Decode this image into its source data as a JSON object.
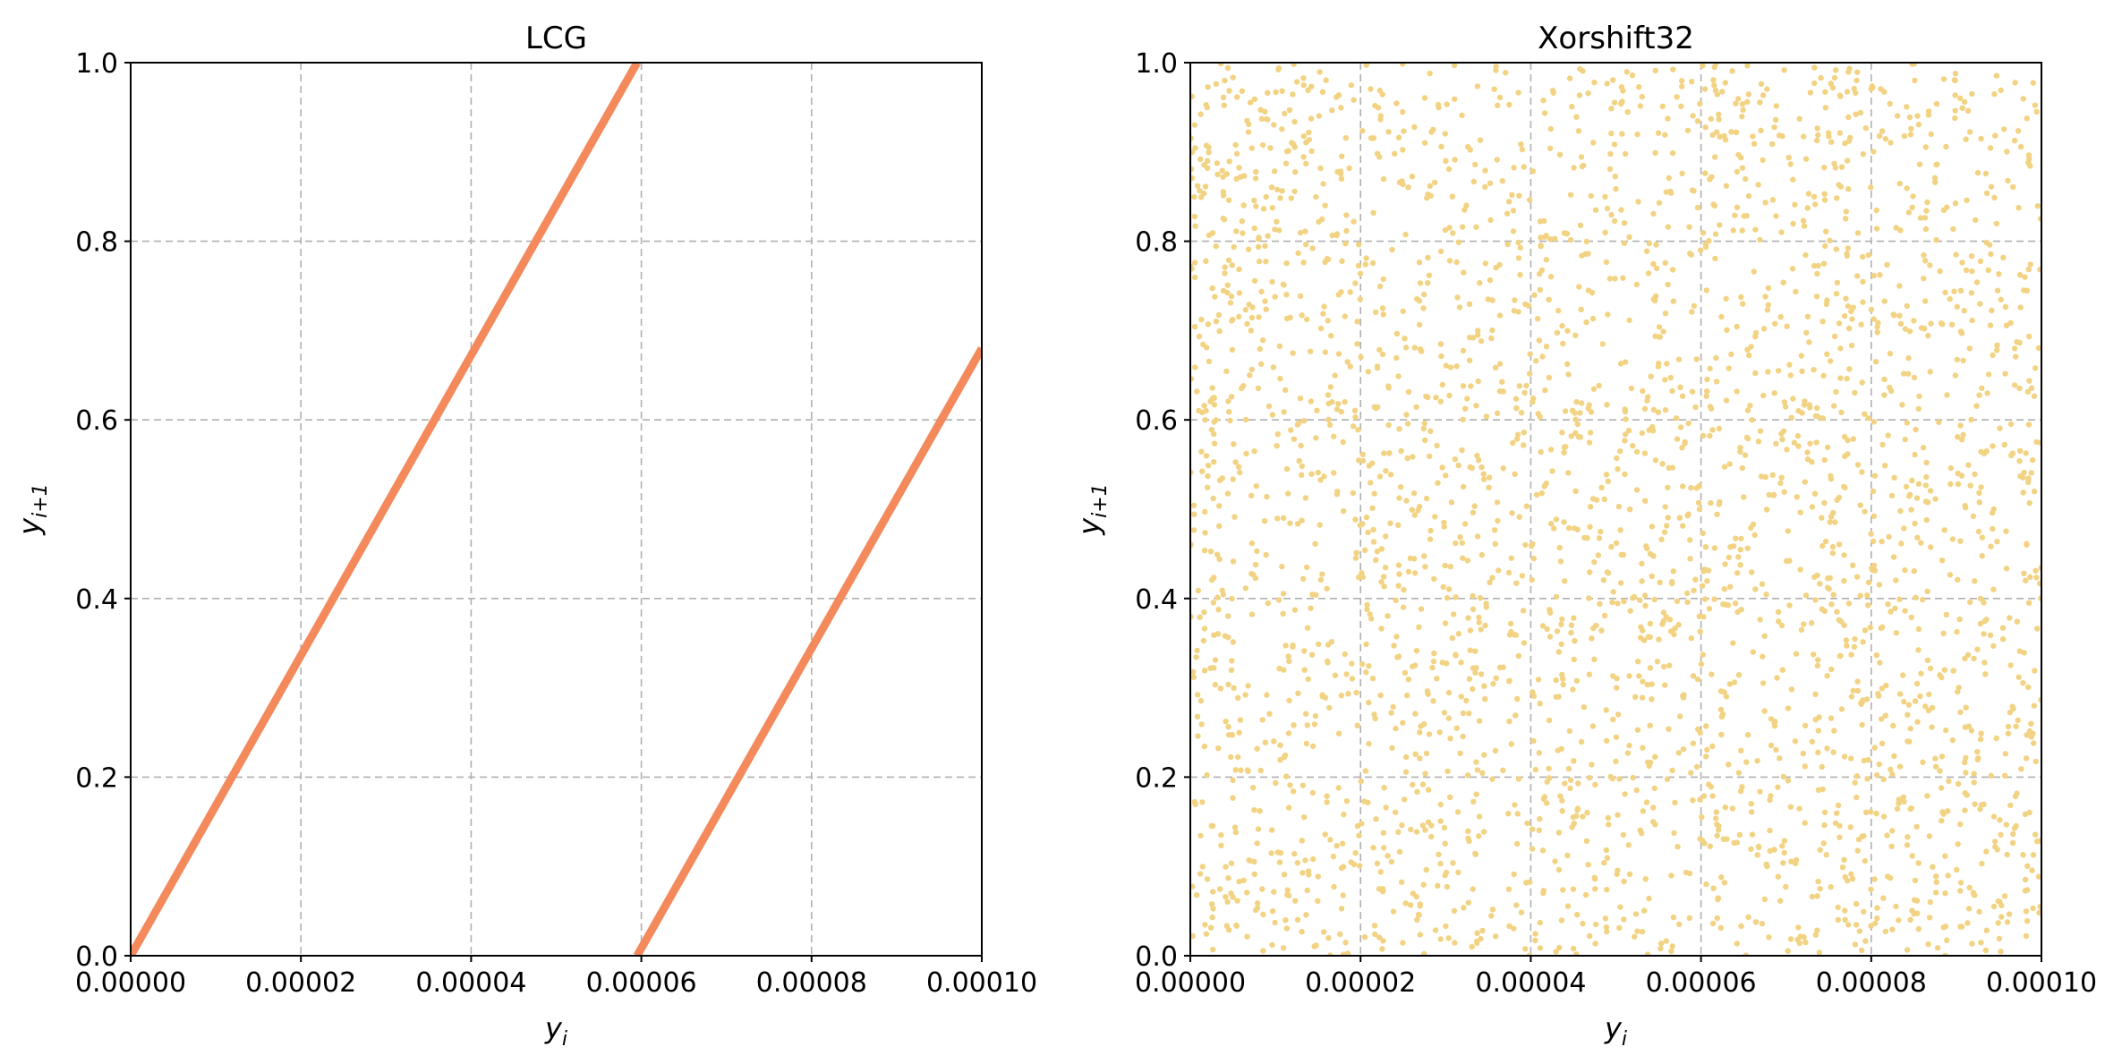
{
  "chart_data": [
    {
      "type": "line",
      "title": "LCG",
      "xlabel": "y",
      "xlabel_sub": "i",
      "ylabel": "y",
      "ylabel_sub": "i+1",
      "xlim": [
        0,
        0.0001
      ],
      "ylim": [
        0,
        1
      ],
      "xticks": [
        "0.00000",
        "0.00002",
        "0.00004",
        "0.00006",
        "0.00008",
        "0.00010"
      ],
      "yticks": [
        "0.0",
        "0.2",
        "0.4",
        "0.6",
        "0.8",
        "1.0"
      ],
      "grid": true,
      "color": "#f4895c",
      "series": [
        {
          "x": [
            0.0,
            5.95e-05
          ],
          "y": [
            0.0,
            1.0
          ]
        },
        {
          "x": [
            5.95e-05,
            0.0001
          ],
          "y": [
            0.0,
            0.68
          ]
        }
      ]
    },
    {
      "type": "scatter",
      "title": "Xorshift32",
      "xlabel": "y",
      "xlabel_sub": "i",
      "ylabel": "y",
      "ylabel_sub": "i+1",
      "xlim": [
        0,
        0.0001
      ],
      "ylim": [
        0,
        1
      ],
      "xticks": [
        "0.00000",
        "0.00002",
        "0.00004",
        "0.00006",
        "0.00008",
        "0.00010"
      ],
      "yticks": [
        "0.0",
        "0.2",
        "0.4",
        "0.6",
        "0.8",
        "1.0"
      ],
      "grid": true,
      "color": "#f2d383",
      "point_count": 3000,
      "distribution": "dense uniform scatter over full range"
    }
  ]
}
